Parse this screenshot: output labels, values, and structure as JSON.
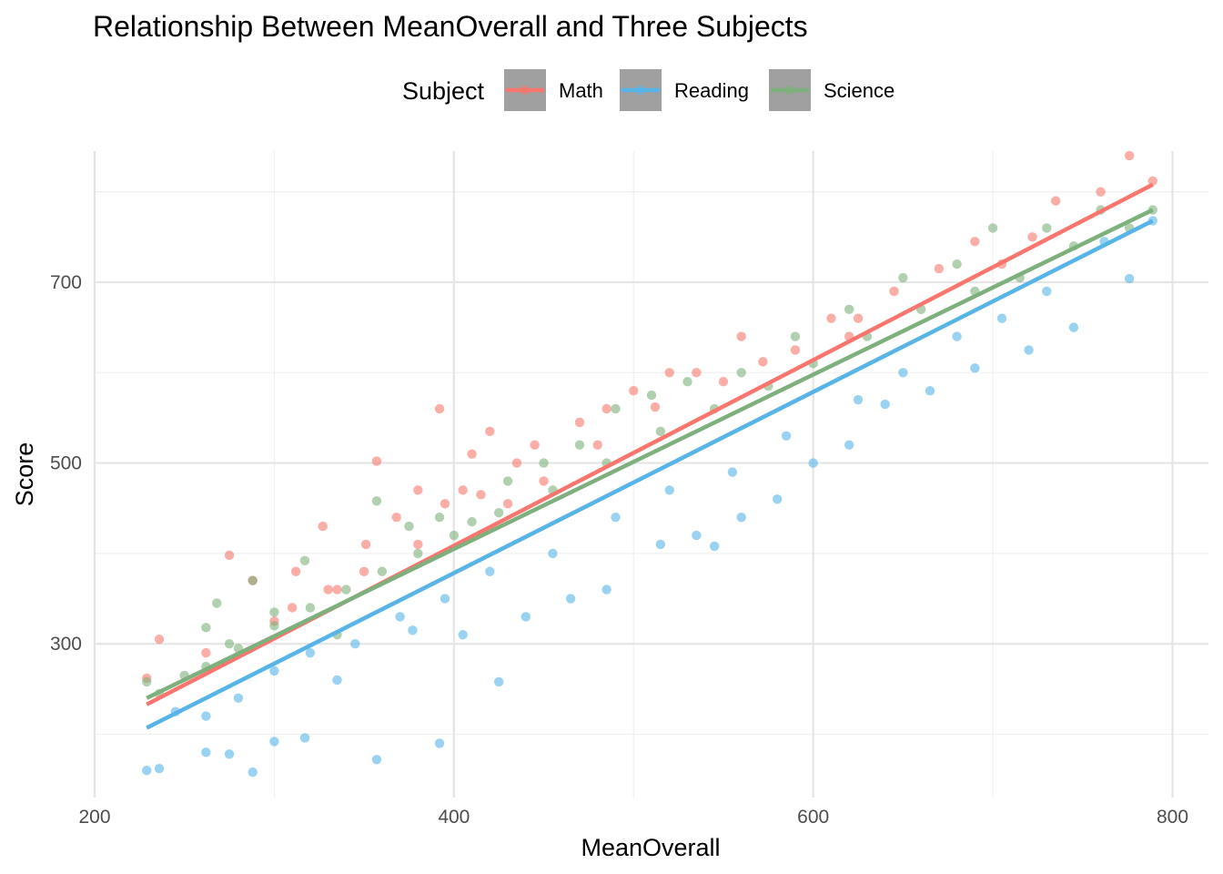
{
  "chart_data": {
    "type": "scatter",
    "title": "Relationship Between MeanOverall and Three Subjects",
    "xlabel": "MeanOverall",
    "ylabel": "Score",
    "xlim": [
      200,
      820
    ],
    "ylim": [
      130,
      845
    ],
    "x_ticks": [
      200,
      400,
      600,
      800
    ],
    "y_ticks": [
      300,
      500,
      700
    ],
    "grid": true,
    "legend": {
      "title": "Subject",
      "position": "top",
      "entries": [
        "Math",
        "Reading",
        "Science"
      ]
    },
    "series": [
      {
        "name": "Math",
        "color": "#F8766D",
        "fit_line": {
          "x": [
            229,
            789
          ],
          "y": [
            233,
            808
          ]
        },
        "points": [
          [
            229,
            262
          ],
          [
            236,
            305
          ],
          [
            262,
            290
          ],
          [
            275,
            398
          ],
          [
            288,
            370
          ],
          [
            300,
            325
          ],
          [
            312,
            380
          ],
          [
            327,
            430
          ],
          [
            335,
            360
          ],
          [
            351,
            410
          ],
          [
            357,
            502
          ],
          [
            368,
            440
          ],
          [
            380,
            470
          ],
          [
            392,
            560
          ],
          [
            395,
            455
          ],
          [
            405,
            470
          ],
          [
            410,
            510
          ],
          [
            420,
            535
          ],
          [
            435,
            500
          ],
          [
            445,
            520
          ],
          [
            470,
            545
          ],
          [
            485,
            560
          ],
          [
            500,
            580
          ],
          [
            512,
            562
          ],
          [
            535,
            600
          ],
          [
            550,
            590
          ],
          [
            572,
            612
          ],
          [
            590,
            625
          ],
          [
            610,
            660
          ],
          [
            625,
            660
          ],
          [
            645,
            690
          ],
          [
            670,
            715
          ],
          [
            690,
            745
          ],
          [
            705,
            720
          ],
          [
            722,
            750
          ],
          [
            735,
            790
          ],
          [
            760,
            800
          ],
          [
            776,
            840
          ],
          [
            789,
            812
          ],
          [
            620,
            640
          ],
          [
            560,
            640
          ],
          [
            520,
            600
          ],
          [
            480,
            520
          ],
          [
            450,
            480
          ],
          [
            430,
            455
          ],
          [
            415,
            465
          ],
          [
            380,
            410
          ],
          [
            350,
            380
          ],
          [
            330,
            360
          ],
          [
            310,
            340
          ]
        ]
      },
      {
        "name": "Reading",
        "color": "#56B4E9",
        "fit_line": {
          "x": [
            229,
            789
          ],
          "y": [
            207,
            768
          ]
        },
        "points": [
          [
            229,
            160
          ],
          [
            236,
            162
          ],
          [
            262,
            180
          ],
          [
            275,
            178
          ],
          [
            288,
            158
          ],
          [
            300,
            192
          ],
          [
            317,
            196
          ],
          [
            335,
            260
          ],
          [
            357,
            172
          ],
          [
            377,
            315
          ],
          [
            392,
            190
          ],
          [
            405,
            310
          ],
          [
            425,
            258
          ],
          [
            440,
            330
          ],
          [
            465,
            350
          ],
          [
            485,
            360
          ],
          [
            515,
            410
          ],
          [
            535,
            420
          ],
          [
            545,
            408
          ],
          [
            560,
            440
          ],
          [
            580,
            460
          ],
          [
            600,
            500
          ],
          [
            620,
            520
          ],
          [
            640,
            565
          ],
          [
            665,
            580
          ],
          [
            690,
            605
          ],
          [
            720,
            625
          ],
          [
            745,
            650
          ],
          [
            776,
            704
          ],
          [
            789,
            768
          ],
          [
            762,
            745
          ],
          [
            730,
            690
          ],
          [
            705,
            660
          ],
          [
            680,
            640
          ],
          [
            650,
            600
          ],
          [
            625,
            570
          ],
          [
            585,
            530
          ],
          [
            555,
            490
          ],
          [
            520,
            470
          ],
          [
            490,
            440
          ],
          [
            455,
            400
          ],
          [
            420,
            380
          ],
          [
            395,
            350
          ],
          [
            370,
            330
          ],
          [
            345,
            300
          ],
          [
            320,
            290
          ],
          [
            300,
            270
          ],
          [
            280,
            240
          ],
          [
            262,
            220
          ],
          [
            245,
            225
          ]
        ]
      },
      {
        "name": "Science",
        "color": "#7DB07C",
        "fit_line": {
          "x": [
            229,
            789
          ],
          "y": [
            240,
            780
          ]
        },
        "points": [
          [
            229,
            258
          ],
          [
            236,
            245
          ],
          [
            262,
            318
          ],
          [
            268,
            345
          ],
          [
            275,
            300
          ],
          [
            288,
            370
          ],
          [
            300,
            335
          ],
          [
            317,
            392
          ],
          [
            335,
            310
          ],
          [
            357,
            458
          ],
          [
            375,
            430
          ],
          [
            392,
            440
          ],
          [
            410,
            435
          ],
          [
            430,
            480
          ],
          [
            450,
            500
          ],
          [
            470,
            520
          ],
          [
            490,
            560
          ],
          [
            510,
            575
          ],
          [
            530,
            590
          ],
          [
            560,
            600
          ],
          [
            590,
            640
          ],
          [
            620,
            670
          ],
          [
            650,
            705
          ],
          [
            680,
            720
          ],
          [
            700,
            760
          ],
          [
            730,
            760
          ],
          [
            760,
            780
          ],
          [
            789,
            780
          ],
          [
            776,
            760
          ],
          [
            745,
            740
          ],
          [
            715,
            705
          ],
          [
            690,
            690
          ],
          [
            660,
            670
          ],
          [
            630,
            640
          ],
          [
            600,
            610
          ],
          [
            575,
            585
          ],
          [
            545,
            560
          ],
          [
            515,
            535
          ],
          [
            485,
            500
          ],
          [
            455,
            470
          ],
          [
            425,
            445
          ],
          [
            400,
            420
          ],
          [
            380,
            400
          ],
          [
            360,
            380
          ],
          [
            340,
            360
          ],
          [
            320,
            340
          ],
          [
            300,
            320
          ],
          [
            280,
            295
          ],
          [
            262,
            275
          ],
          [
            250,
            265
          ]
        ]
      }
    ]
  }
}
